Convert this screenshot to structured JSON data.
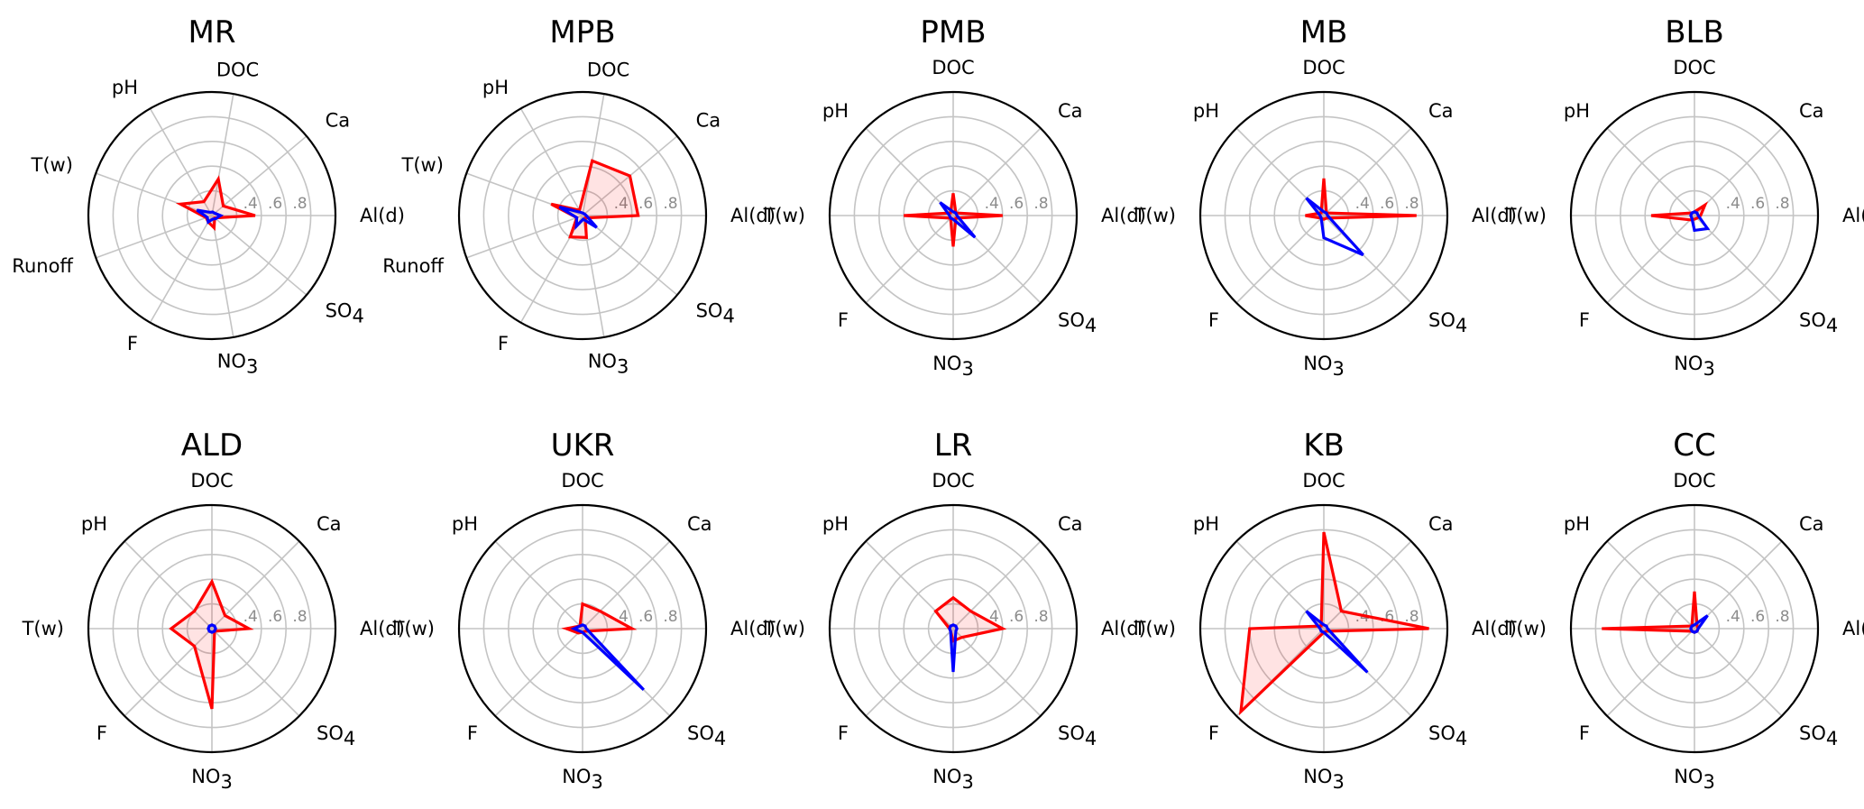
{
  "chart_data": [
    {
      "type": "radar",
      "title": "MR",
      "axes": [
        "Al(d)",
        "Ca",
        "DOC",
        "pH",
        "T(w)",
        "Runoff",
        "F",
        "NO3",
        "SO4"
      ],
      "rticks": [
        ".4",
        ".6",
        ".8"
      ],
      "rmax": 1.0,
      "series": [
        {
          "color": "#ff0000",
          "filled": true,
          "values": [
            0.35,
            0.12,
            0.3,
            0.13,
            0.27,
            0.05,
            0.06,
            0.1,
            0.03
          ]
        },
        {
          "color": "#0000ff",
          "filled": false,
          "values": [
            0.07,
            0.03,
            0.03,
            0.03,
            0.13,
            0.04,
            0.06,
            0.03,
            0.04
          ]
        }
      ]
    },
    {
      "type": "radar",
      "title": "MPB",
      "axes": [
        "Al(d)",
        "Ca",
        "DOC",
        "pH",
        "T(w)",
        "Runoff",
        "F",
        "NO3",
        "SO4"
      ],
      "rticks": [
        ".4",
        ".6",
        ".8"
      ],
      "rmax": 1.0,
      "series": [
        {
          "color": "#ff0000",
          "filled": true,
          "values": [
            0.45,
            0.5,
            0.45,
            0.05,
            0.27,
            0.05,
            0.2,
            0.18,
            0.03
          ]
        },
        {
          "color": "#0000ff",
          "filled": false,
          "values": [
            0.03,
            0.02,
            0.02,
            0.03,
            0.2,
            0.05,
            0.1,
            0.03,
            0.15
          ]
        }
      ]
    },
    {
      "type": "radar",
      "title": "PMB",
      "axes": [
        "Al(d)",
        "Ca",
        "DOC",
        "pH",
        "T(w)",
        "F",
        "NO3",
        "SO4"
      ],
      "rticks": [
        ".4",
        ".6",
        ".8"
      ],
      "rmax": 1.0,
      "series": [
        {
          "color": "#ff0000",
          "filled": true,
          "values": [
            0.4,
            0.03,
            0.18,
            0.03,
            0.4,
            0.03,
            0.25,
            0.03
          ]
        },
        {
          "color": "#0000ff",
          "filled": false,
          "values": [
            0.03,
            0.03,
            0.03,
            0.15,
            0.03,
            0.03,
            0.03,
            0.25
          ]
        }
      ]
    },
    {
      "type": "radar",
      "title": "MB",
      "axes": [
        "Al(d)",
        "Ca",
        "DOC",
        "pH",
        "T(w)",
        "F",
        "NO3",
        "SO4"
      ],
      "rticks": [
        ".4",
        ".6",
        ".8"
      ],
      "rmax": 1.0,
      "series": [
        {
          "color": "#ff0000",
          "filled": true,
          "values": [
            0.75,
            0.03,
            0.3,
            0.03,
            0.15,
            0.03,
            0.03,
            0.03
          ]
        },
        {
          "color": "#0000ff",
          "filled": false,
          "values": [
            0.03,
            0.03,
            0.03,
            0.2,
            0.03,
            0.03,
            0.18,
            0.45
          ]
        }
      ]
    },
    {
      "type": "radar",
      "title": "BLB",
      "axes": [
        "Al(d)",
        "Ca",
        "DOC",
        "pH",
        "T(w)",
        "F",
        "NO3",
        "SO4"
      ],
      "rticks": [
        ".4",
        ".6",
        ".8"
      ],
      "rmax": 1.0,
      "series": [
        {
          "color": "#ff0000",
          "filled": true,
          "values": [
            0.05,
            0.12,
            0.03,
            0.03,
            0.35,
            0.05,
            0.03,
            0.03
          ]
        },
        {
          "color": "#0000ff",
          "filled": false,
          "values": [
            0.03,
            0.03,
            0.03,
            0.03,
            0.03,
            0.03,
            0.12,
            0.15
          ]
        }
      ]
    },
    {
      "type": "radar",
      "title": "ALD",
      "axes": [
        "Al(d)",
        "Ca",
        "DOC",
        "pH",
        "T(w)",
        "F",
        "NO3",
        "SO4"
      ],
      "rticks": [
        ".4",
        ".6",
        ".8"
      ],
      "rmax": 1.0,
      "series": [
        {
          "color": "#ff0000",
          "filled": true,
          "values": [
            0.3,
            0.15,
            0.38,
            0.2,
            0.33,
            0.2,
            0.65,
            0.03
          ]
        },
        {
          "color": "#0000ff",
          "filled": false,
          "values": [
            0.03,
            0.03,
            0.03,
            0.03,
            0.03,
            0.03,
            0.03,
            0.03
          ]
        }
      ]
    },
    {
      "type": "radar",
      "title": "UKR",
      "axes": [
        "Al(d)",
        "Ca",
        "DOC",
        "pH",
        "T(w)",
        "F",
        "NO3",
        "SO4"
      ],
      "rticks": [
        ".4",
        ".6",
        ".8"
      ],
      "rmax": 1.0,
      "series": [
        {
          "color": "#ff0000",
          "filled": true,
          "values": [
            0.4,
            0.2,
            0.2,
            0.03,
            0.13,
            0.05,
            0.03,
            0.03
          ]
        },
        {
          "color": "#0000ff",
          "filled": false,
          "values": [
            0.03,
            0.03,
            0.03,
            0.03,
            0.07,
            0.03,
            0.03,
            0.7
          ]
        }
      ]
    },
    {
      "type": "radar",
      "title": "LR",
      "axes": [
        "Al(d)",
        "Ca",
        "DOC",
        "pH",
        "T(w)",
        "F",
        "NO3",
        "SO4"
      ],
      "rticks": [
        ".4",
        ".6",
        ".8"
      ],
      "rmax": 1.0,
      "series": [
        {
          "color": "#ff0000",
          "filled": true,
          "values": [
            0.4,
            0.2,
            0.25,
            0.2,
            0.03,
            0.03,
            0.1,
            0.1
          ]
        },
        {
          "color": "#0000ff",
          "filled": false,
          "values": [
            0.03,
            0.03,
            0.03,
            0.03,
            0.03,
            0.03,
            0.35,
            0.03
          ]
        }
      ]
    },
    {
      "type": "radar",
      "title": "KB",
      "axes": [
        "Al(d)",
        "Ca",
        "DOC",
        "pH",
        "T(w)",
        "F",
        "NO3",
        "SO4"
      ],
      "rticks": [
        ".4",
        ".6",
        ".8"
      ],
      "rmax": 1.0,
      "series": [
        {
          "color": "#ff0000",
          "filled": true,
          "values": [
            0.85,
            0.2,
            0.78,
            0.03,
            0.6,
            0.95,
            0.03,
            0.03
          ]
        },
        {
          "color": "#0000ff",
          "filled": false,
          "values": [
            0.03,
            0.03,
            0.03,
            0.2,
            0.03,
            0.03,
            0.03,
            0.5
          ]
        }
      ]
    },
    {
      "type": "radar",
      "title": "CC",
      "axes": [
        "Al(d)",
        "Ca",
        "DOC",
        "pH",
        "T(w)",
        "F",
        "NO3",
        "SO4"
      ],
      "rticks": [
        ".4",
        ".6",
        ".8"
      ],
      "rmax": 1.0,
      "series": [
        {
          "color": "#ff0000",
          "filled": true,
          "values": [
            0.03,
            0.03,
            0.3,
            0.03,
            0.75,
            0.03,
            0.03,
            0.03
          ]
        },
        {
          "color": "#0000ff",
          "filled": false,
          "values": [
            0.03,
            0.15,
            0.03,
            0.03,
            0.03,
            0.03,
            0.03,
            0.03
          ]
        }
      ]
    }
  ]
}
